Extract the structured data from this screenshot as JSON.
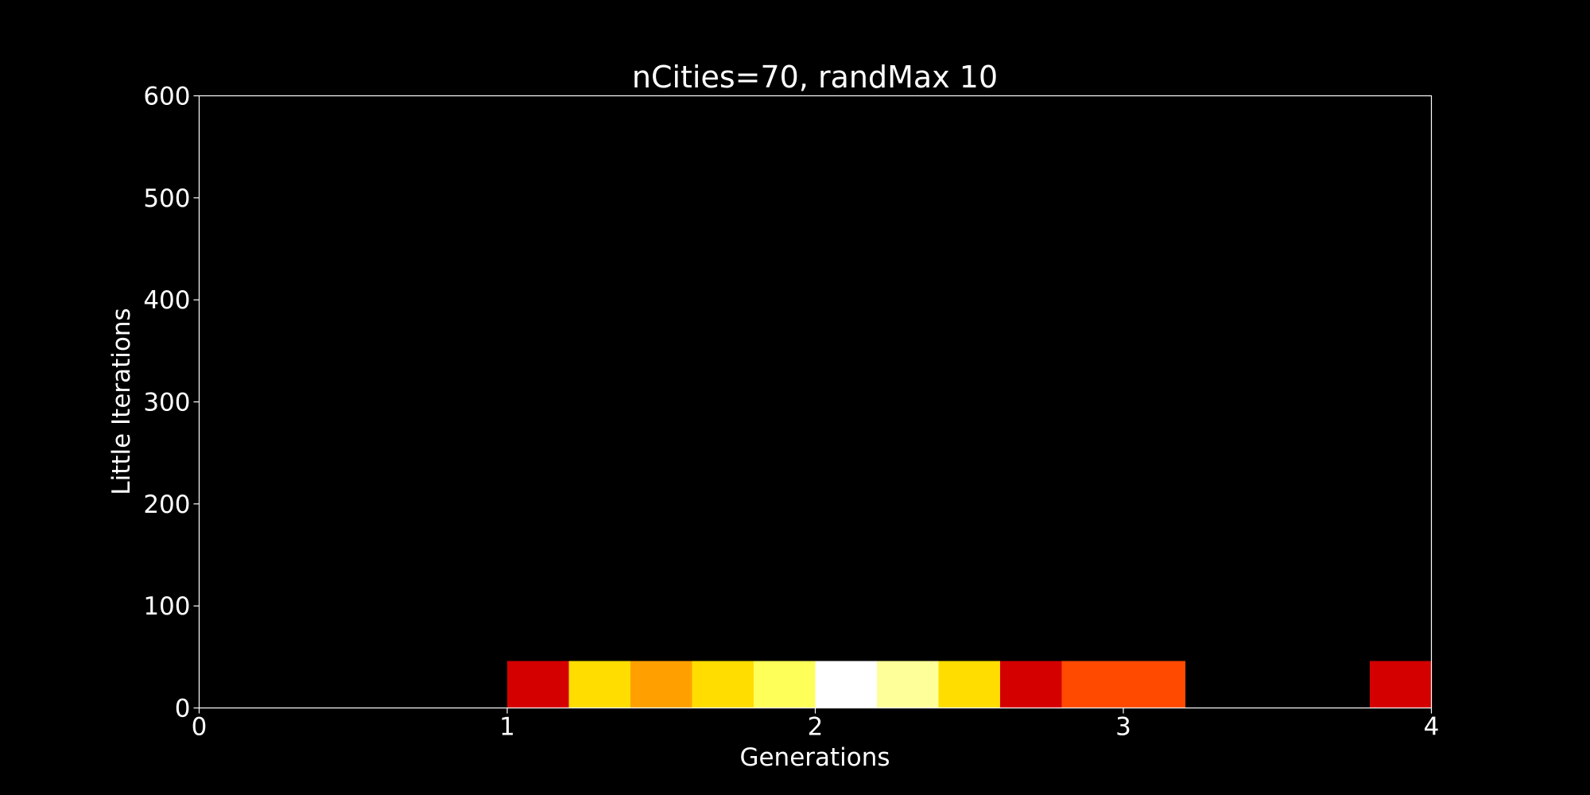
{
  "chart_data": {
    "type": "heatmap",
    "title": "nCities=70, randMax 10",
    "xlabel": "Generations",
    "ylabel": "Little Iterations",
    "xlim": [
      0,
      4
    ],
    "ylim": [
      0,
      600
    ],
    "xticks": [
      "0",
      "1",
      "2",
      "3",
      "4"
    ],
    "yticks": [
      "0",
      "100",
      "200",
      "300",
      "400",
      "500",
      "600"
    ],
    "grid": false,
    "background": "#000000",
    "foreground": "#ffffff",
    "cell_height": 46,
    "cells": [
      {
        "x0": 1.0,
        "x1": 1.2,
        "color": "#d40000"
      },
      {
        "x0": 1.2,
        "x1": 1.4,
        "color": "#ffdd00"
      },
      {
        "x0": 1.4,
        "x1": 1.6,
        "color": "#ffa000"
      },
      {
        "x0": 1.6,
        "x1": 1.8,
        "color": "#ffdd00"
      },
      {
        "x0": 1.8,
        "x1": 2.0,
        "color": "#ffff5a"
      },
      {
        "x0": 2.0,
        "x1": 2.2,
        "color": "#ffffff"
      },
      {
        "x0": 2.2,
        "x1": 2.4,
        "color": "#ffff99"
      },
      {
        "x0": 2.4,
        "x1": 2.6,
        "color": "#ffdd00"
      },
      {
        "x0": 2.6,
        "x1": 2.8,
        "color": "#d40000"
      },
      {
        "x0": 2.8,
        "x1": 3.0,
        "color": "#ff4a00"
      },
      {
        "x0": 3.0,
        "x1": 3.2,
        "color": "#ff4a00"
      },
      {
        "x0": 3.8,
        "x1": 4.0,
        "color": "#d40000"
      }
    ]
  }
}
